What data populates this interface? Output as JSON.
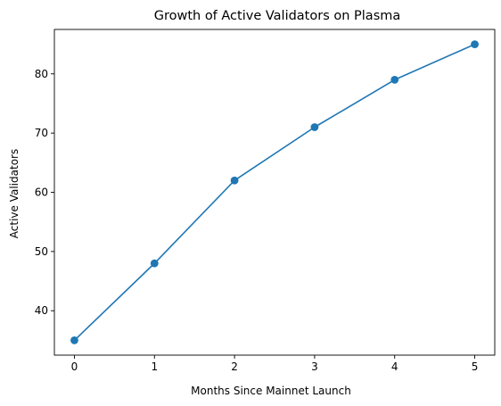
{
  "chart_data": {
    "type": "line",
    "title": "Growth of Active Validators on Plasma",
    "xlabel": "Months Since Mainnet Launch",
    "ylabel": "Active Validators",
    "x": [
      0,
      1,
      2,
      3,
      4,
      5
    ],
    "series": [
      {
        "values": [
          35,
          48,
          62,
          71,
          79,
          85
        ],
        "color": "#1f77b4",
        "marker": "circle"
      }
    ],
    "xlim": [
      -0.25,
      5.25
    ],
    "ylim": [
      32.5,
      87.5
    ],
    "xticks": [
      "0",
      "1",
      "2",
      "3",
      "4",
      "5"
    ],
    "yticks": [
      "40",
      "50",
      "60",
      "70",
      "80"
    ],
    "grid": false,
    "legend": "none"
  }
}
